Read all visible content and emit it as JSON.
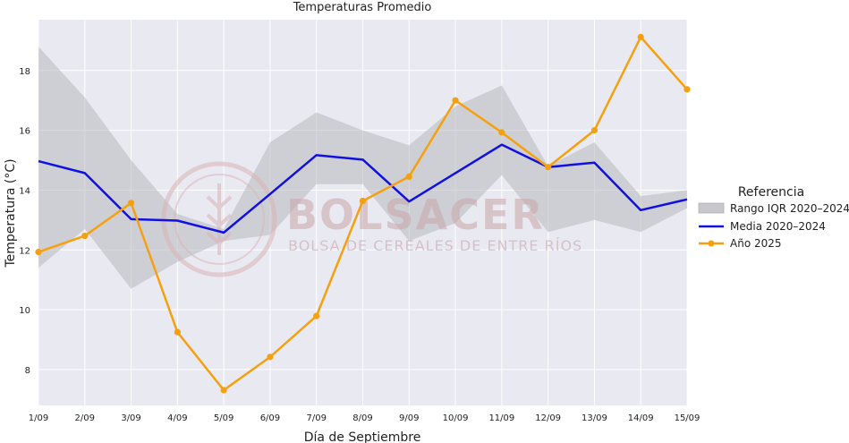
{
  "chart_data": {
    "type": "line",
    "title": "Temperaturas Promedio",
    "xlabel": "Día de Septiembre",
    "ylabel": "Temperatura (°C)",
    "categories": [
      "1/09",
      "2/09",
      "3/09",
      "4/09",
      "5/09",
      "6/09",
      "7/09",
      "8/09",
      "9/09",
      "10/09",
      "11/09",
      "12/09",
      "13/09",
      "14/09",
      "15/09"
    ],
    "ylim": [
      6.8,
      19.7
    ],
    "yticks": [
      8,
      10,
      12,
      14,
      16,
      18
    ],
    "grid": true,
    "legend_title": "Referencia",
    "legend_position": "right",
    "band": {
      "name": "Rango IQR 2020–2024",
      "color": "#b8b8be",
      "lower": [
        11.4,
        12.7,
        10.7,
        11.6,
        12.3,
        12.5,
        14.2,
        14.2,
        12.3,
        12.9,
        14.5,
        12.6,
        13.0,
        12.6,
        13.4
      ],
      "upper": [
        18.8,
        17.1,
        15.0,
        13.2,
        12.7,
        15.6,
        16.6,
        16.0,
        15.5,
        16.8,
        17.5,
        14.8,
        15.6,
        13.8,
        14.0
      ]
    },
    "series": [
      {
        "name": "Media 2020–2024",
        "color": "#1010e0",
        "values": [
          14.97,
          14.57,
          13.03,
          12.98,
          12.58,
          13.87,
          15.17,
          15.02,
          13.62,
          14.57,
          15.52,
          14.77,
          14.92,
          13.33,
          13.69
        ]
      },
      {
        "name": "Año 2025",
        "color": "#f5a10f",
        "values": [
          11.93,
          12.47,
          13.57,
          9.25,
          7.31,
          8.42,
          9.79,
          13.64,
          14.45,
          17.0,
          15.93,
          14.77,
          16.0,
          19.12,
          17.37
        ]
      }
    ]
  },
  "watermark": {
    "title": "BOLSACER",
    "subtitle": "BOLSA DE CEREALES DE ENTRE RÍOS"
  }
}
